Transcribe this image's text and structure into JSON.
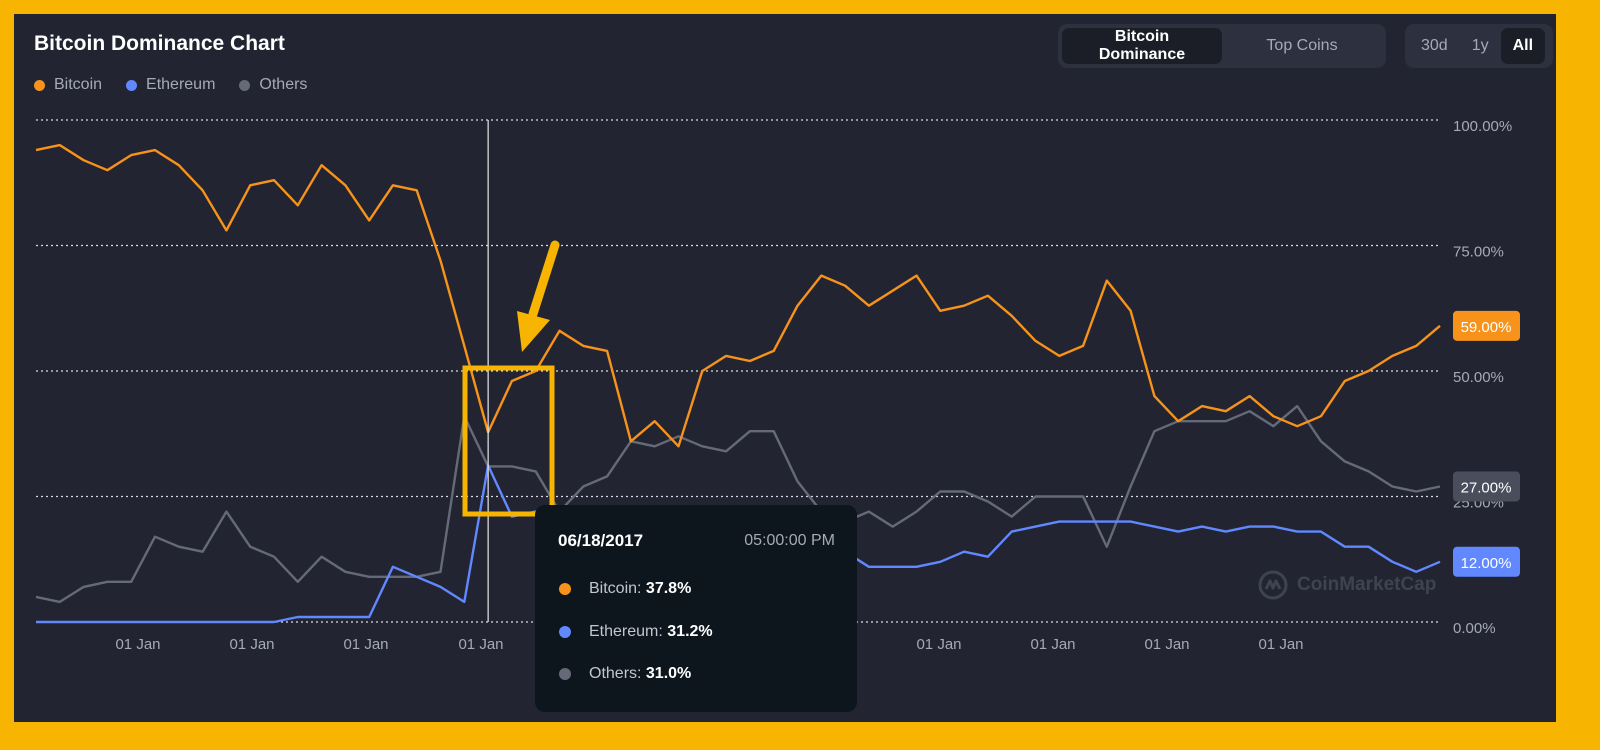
{
  "header": {
    "title": "Bitcoin Dominance Chart",
    "tabs": [
      "Bitcoin Dominance",
      "Top Coins"
    ],
    "active_tab": 0,
    "ranges": [
      "30d",
      "1y",
      "All"
    ],
    "active_range": 2
  },
  "legend": [
    {
      "name": "Bitcoin",
      "color": "#f7931a"
    },
    {
      "name": "Ethereum",
      "color": "#6188ff"
    },
    {
      "name": "Others",
      "color": "#666a78"
    }
  ],
  "tooltip": {
    "date": "06/18/2017",
    "time": "05:00:00 PM",
    "rows": [
      {
        "name": "Bitcoin",
        "value": "37.8%",
        "color": "#f7931a"
      },
      {
        "name": "Ethereum",
        "value": "31.2%",
        "color": "#6188ff"
      },
      {
        "name": "Others",
        "value": "31.0%",
        "color": "#666a78"
      }
    ]
  },
  "watermark": "CoinMarketCap",
  "chart_data": {
    "type": "line",
    "title": "Bitcoin Dominance Chart",
    "xlabel": "",
    "ylabel": "",
    "ylim": [
      0,
      100
    ],
    "y_ticks": [
      "0.00%",
      "25.00%",
      "50.00%",
      "75.00%",
      "100.00%"
    ],
    "x_tick_labels": [
      "01 Jan",
      "01 Jan",
      "01 Jan",
      "01 Jan",
      "01 Jan",
      "01 Jan",
      "01 Jan",
      "01 Jan"
    ],
    "grid": true,
    "legend_position": "top-left",
    "current_values": [
      {
        "series": "Bitcoin",
        "label": "59.00%"
      },
      {
        "series": "Others",
        "label": "27.00%"
      },
      {
        "series": "Ethereum",
        "label": "12.00%"
      }
    ],
    "x": [
      "2013-05",
      "2013-08",
      "2013-11",
      "2014-02",
      "2014-05",
      "2014-08",
      "2014-11",
      "2015-02",
      "2015-05",
      "2015-08",
      "2015-11",
      "2016-02",
      "2016-05",
      "2016-08",
      "2016-11",
      "2017-01",
      "2017-03",
      "2017-04",
      "2017-05",
      "2017-06",
      "2017-07",
      "2017-08",
      "2017-09",
      "2017-10",
      "2017-11",
      "2017-12",
      "2018-01",
      "2018-02",
      "2018-04",
      "2018-06",
      "2018-08",
      "2018-10",
      "2018-12",
      "2019-02",
      "2019-04",
      "2019-06",
      "2019-08",
      "2019-10",
      "2019-12",
      "2020-02",
      "2020-04",
      "2020-06",
      "2020-08",
      "2020-10",
      "2020-12",
      "2021-01",
      "2021-02",
      "2021-05",
      "2021-08",
      "2021-11",
      "2022-02",
      "2022-05",
      "2022-08",
      "2022-11",
      "2023-02",
      "2023-05",
      "2023-08",
      "2023-11",
      "2024-01",
      "2024-03"
    ],
    "series": [
      {
        "name": "Bitcoin",
        "color": "#f7931a",
        "values": [
          94,
          95,
          92,
          90,
          93,
          94,
          91,
          86,
          78,
          87,
          88,
          83,
          91,
          87,
          80,
          87,
          86,
          72,
          55,
          37.8,
          48,
          50,
          58,
          55,
          54,
          36,
          40,
          35,
          50,
          53,
          52,
          54,
          63,
          69,
          67,
          63,
          66,
          69,
          62,
          63,
          65,
          61,
          56,
          53,
          55,
          68,
          62,
          45,
          40,
          43,
          42,
          45,
          41,
          39,
          41,
          48,
          50,
          53,
          55,
          59
        ]
      },
      {
        "name": "Ethereum",
        "color": "#6188ff",
        "values": [
          0,
          0,
          0,
          0,
          0,
          0,
          0,
          0,
          0,
          0,
          0,
          1,
          1,
          1,
          1,
          11,
          9,
          7,
          4,
          31.2,
          21,
          22,
          20,
          18,
          17,
          12,
          11,
          10,
          10,
          9,
          10,
          11,
          12,
          14,
          14,
          11,
          11,
          11,
          12,
          14,
          13,
          18,
          19,
          20,
          20,
          20,
          20,
          19,
          18,
          19,
          18,
          19,
          19,
          18,
          18,
          15,
          15,
          12,
          10,
          12
        ]
      },
      {
        "name": "Others",
        "color": "#666a78",
        "values": [
          5,
          4,
          7,
          8,
          8,
          17,
          15,
          14,
          22,
          15,
          13,
          8,
          13,
          10,
          9,
          9,
          9,
          10,
          41,
          31.0,
          31,
          30,
          22,
          27,
          29,
          36,
          35,
          37,
          35,
          34,
          38,
          38,
          28,
          22,
          20,
          22,
          19,
          22,
          26,
          26,
          24,
          21,
          25,
          25,
          25,
          15,
          27,
          38,
          40,
          40,
          40,
          42,
          39,
          43,
          36,
          32,
          30,
          27,
          26,
          27
        ]
      }
    ]
  }
}
